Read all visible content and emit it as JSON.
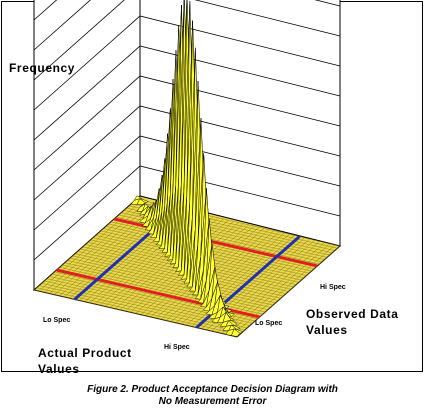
{
  "chart_data": {
    "type": "surface",
    "title": "",
    "zlabel": "Frequency",
    "xlabel": "Actual Product Values",
    "ylabel": "Observed Data Values",
    "x_ticks": {
      "lo": "Lo Spec",
      "hi": "Hi Spec"
    },
    "y_ticks": {
      "lo": "Lo Spec",
      "hi": "Hi Spec"
    },
    "surface_color": "#ffff33",
    "spec_line_colors": {
      "red": "#e02020",
      "blue": "#2030b0"
    },
    "grid": true
  },
  "caption": {
    "line1": "Figure 2. Product Acceptance Decision Diagram with",
    "line2": "No Measurement Error"
  }
}
